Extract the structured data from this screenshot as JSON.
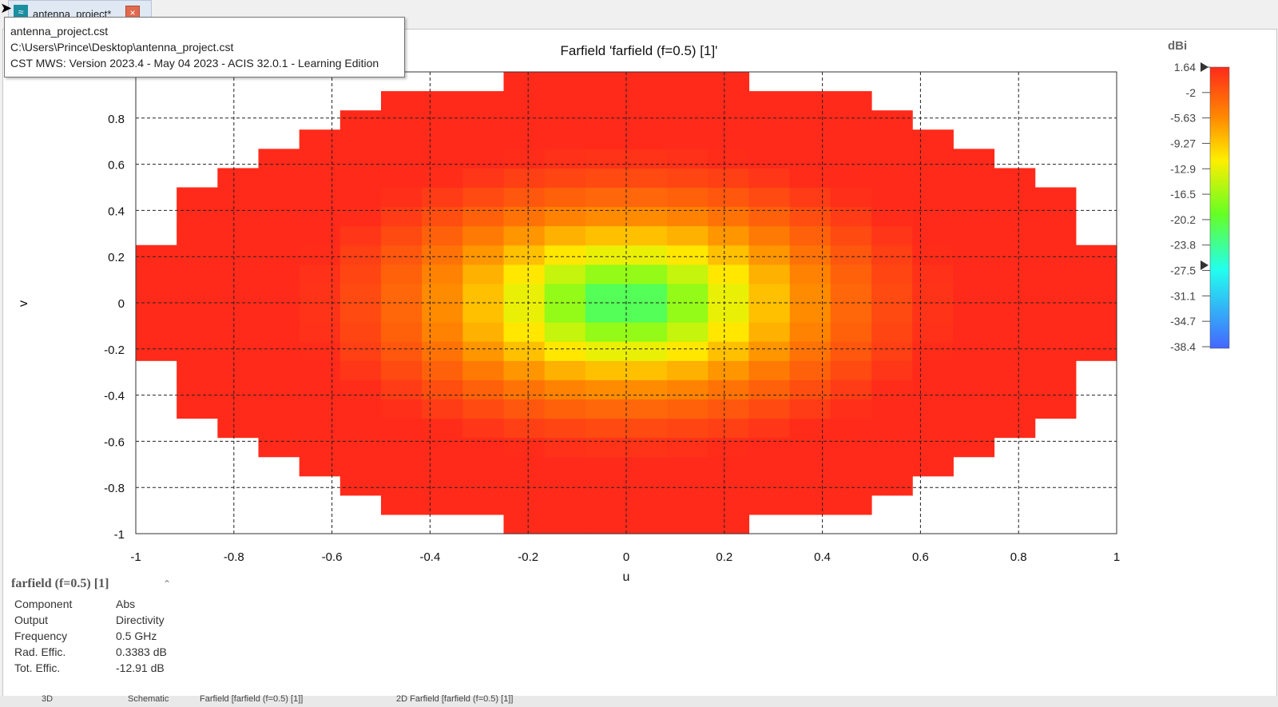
{
  "tab": {
    "label": "antenna_project*",
    "icon": "cst-app-icon",
    "close": "×"
  },
  "tooltip": {
    "line1": "antenna_project.cst",
    "line2": "C:\\Users\\Prince\\Desktop\\antenna_project.cst",
    "line3": "CST MWS: Version 2023.4 - May 04 2023 - ACIS 32.0.1 - Learning Edition"
  },
  "chart_data": {
    "type": "heatmap",
    "title": "Farfield 'farfield (f=0.5) [1]'",
    "xlabel": "u",
    "ylabel": "v",
    "xlim": [
      -1,
      1
    ],
    "ylim": [
      -1,
      1
    ],
    "x_ticks": [
      "-1",
      "-0.8",
      "-0.6",
      "-0.4",
      "-0.2",
      "0",
      "0.2",
      "0.4",
      "0.6",
      "0.8",
      "1"
    ],
    "y_ticks": [
      "0.8",
      "0.6",
      "0.4",
      "0.2",
      "0",
      "-0.2",
      "-0.4",
      "-0.6",
      "-0.8",
      "-1"
    ],
    "grid": true,
    "colorbar": {
      "unit": "dBi",
      "ticks": [
        "1.64",
        "-2",
        "-5.63",
        "-9.27",
        "-12.9",
        "-16.5",
        "-20.2",
        "-23.8",
        "-27.5",
        "-31.1",
        "-34.7",
        "-38.4"
      ],
      "max": 1.64,
      "min": -38.4
    }
  },
  "info": {
    "header": "farfield (f=0.5) [1]",
    "rows": [
      {
        "k": "Component",
        "v": "Abs"
      },
      {
        "k": "Output",
        "v": "Directivity"
      },
      {
        "k": "Frequency",
        "v": "0.5 GHz"
      },
      {
        "k": "Rad. Effic.",
        "v": "0.3383 dB"
      },
      {
        "k": "Tot. Effic.",
        "v": "-12.91 dB"
      }
    ]
  },
  "bottom_tabs": [
    "3D",
    "Schematic",
    "Farfield [farfield (f=0.5) [1]]",
    "2D Farfield [farfield (f=0.5) [1]]"
  ]
}
